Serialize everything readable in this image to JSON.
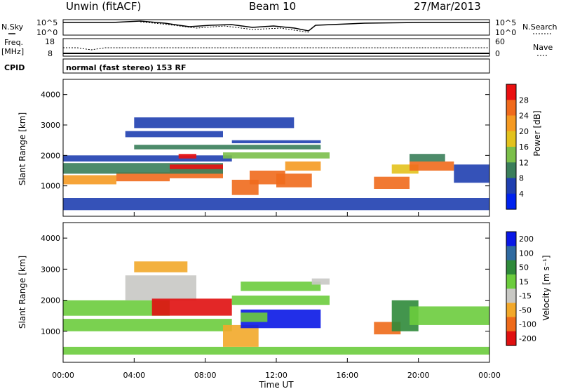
{
  "header": {
    "station": "Unwin (fitACF)",
    "beam": "Beam 10",
    "date": "27/Mar/2013"
  },
  "strip_labels": {
    "nsky": "N.Sky",
    "nsearch": "N.Search",
    "freq": "Freq.",
    "freq_unit": "[MHz]",
    "nave": "Nave",
    "cpid": "CPID",
    "noise_left_ticks": [
      "10^5",
      "10^0"
    ],
    "noise_right_ticks": [
      "10^5",
      "10^0"
    ],
    "freq_ticks": [
      "18",
      "8"
    ],
    "nave_ticks": [
      "60",
      "0"
    ]
  },
  "cpid_value": "normal (fast stereo) 153 RF",
  "x_axis": {
    "label": "Time UT",
    "ticks": [
      "00:00",
      "04:00",
      "08:00",
      "12:00",
      "16:00",
      "20:00",
      "00:00"
    ]
  },
  "colors": {
    "power_scale": [
      "#0022ee",
      "#1f3fb0",
      "#3a7e5a",
      "#7bbf4a",
      "#e3c21d",
      "#f59a22",
      "#f06a1c",
      "#ea1010"
    ],
    "velocity_scale": [
      "#0a18e6",
      "#2f6aa0",
      "#2f8a3a",
      "#6ccc3d",
      "#c8c8c4",
      "#f2a82a",
      "#ee6a1a",
      "#e01010"
    ]
  },
  "chart_data": [
    {
      "type": "heatmap",
      "panel": "power",
      "ylabel": "Slant Range [km]",
      "ylim": [
        0,
        4500
      ],
      "yticks": [
        "1000",
        "2000",
        "3000",
        "4000"
      ],
      "xlim_hours": [
        0,
        24
      ],
      "colorbar": {
        "label": "Power [dB]",
        "ticks": [
          "4",
          "8",
          "12",
          "16",
          "20",
          "24",
          "28"
        ],
        "range": [
          0,
          32
        ]
      },
      "regions": [
        {
          "t0": 0.0,
          "t1": 24.0,
          "r0": 200,
          "r1": 600,
          "value": 6
        },
        {
          "t0": 0.0,
          "t1": 3.0,
          "r0": 1050,
          "r1": 1350,
          "value": 23
        },
        {
          "t0": 3.0,
          "t1": 6.0,
          "r0": 1150,
          "r1": 1450,
          "value": 24
        },
        {
          "t0": 6.0,
          "t1": 9.0,
          "r0": 1250,
          "r1": 1600,
          "value": 27
        },
        {
          "t0": 0.0,
          "t1": 9.0,
          "r0": 1400,
          "r1": 1750,
          "value": 11
        },
        {
          "t0": 0.0,
          "t1": 9.5,
          "r0": 1800,
          "r1": 2000,
          "value": 7
        },
        {
          "t0": 6.0,
          "t1": 9.0,
          "r0": 1550,
          "r1": 1700,
          "value": 29
        },
        {
          "t0": 6.5,
          "t1": 7.5,
          "r0": 1900,
          "r1": 2050,
          "value": 28
        },
        {
          "t0": 4.0,
          "t1": 14.5,
          "r0": 2200,
          "r1": 2350,
          "value": 10
        },
        {
          "t0": 3.5,
          "t1": 9.0,
          "r0": 2600,
          "r1": 2800,
          "value": 6
        },
        {
          "t0": 4.0,
          "t1": 13.0,
          "r0": 2900,
          "r1": 3250,
          "value": 5
        },
        {
          "t0": 9.5,
          "t1": 11.0,
          "r0": 700,
          "r1": 1200,
          "value": 26
        },
        {
          "t0": 10.5,
          "t1": 12.5,
          "r0": 1050,
          "r1": 1500,
          "value": 26
        },
        {
          "t0": 12.0,
          "t1": 14.0,
          "r0": 950,
          "r1": 1400,
          "value": 27
        },
        {
          "t0": 12.5,
          "t1": 14.5,
          "r0": 1500,
          "r1": 1800,
          "value": 20
        },
        {
          "t0": 9.0,
          "t1": 15.0,
          "r0": 1900,
          "r1": 2100,
          "value": 15
        },
        {
          "t0": 9.5,
          "t1": 14.5,
          "r0": 2400,
          "r1": 2500,
          "value": 6
        },
        {
          "t0": 17.5,
          "t1": 19.5,
          "r0": 900,
          "r1": 1300,
          "value": 25
        },
        {
          "t0": 18.5,
          "t1": 20.0,
          "r0": 1400,
          "r1": 1700,
          "value": 16
        },
        {
          "t0": 19.5,
          "t1": 22.0,
          "r0": 1500,
          "r1": 1800,
          "value": 26
        },
        {
          "t0": 19.5,
          "t1": 21.5,
          "r0": 1800,
          "r1": 2050,
          "value": 11
        },
        {
          "t0": 22.0,
          "t1": 24.0,
          "r0": 1100,
          "r1": 1700,
          "value": 6
        }
      ]
    },
    {
      "type": "heatmap",
      "panel": "velocity",
      "ylabel": "Slant Range [km]",
      "ylim": [
        0,
        4500
      ],
      "yticks": [
        "1000",
        "2000",
        "3000",
        "4000"
      ],
      "xlim_hours": [
        0,
        24
      ],
      "colorbar": {
        "label": "Velocity [m s⁻¹]",
        "ticks": [
          "200",
          "100",
          "50",
          "15",
          "-15",
          "-50",
          "-100",
          "-200"
        ],
        "range": [
          -250,
          250
        ]
      },
      "regions": [
        {
          "t0": 0.0,
          "t1": 24.0,
          "r0": 250,
          "r1": 500,
          "value": 0
        },
        {
          "t0": 0.0,
          "t1": 9.5,
          "r0": 1000,
          "r1": 1400,
          "value": 0
        },
        {
          "t0": 0.0,
          "t1": 6.0,
          "r0": 1500,
          "r1": 2000,
          "value": 0
        },
        {
          "t0": 3.5,
          "t1": 7.5,
          "r0": 2000,
          "r1": 2800,
          "value": -50
        },
        {
          "t0": 4.0,
          "t1": 7.0,
          "r0": 2900,
          "r1": 3250,
          "value": -80
        },
        {
          "t0": 5.0,
          "t1": 9.5,
          "r0": 1500,
          "r1": 2050,
          "value": -190
        },
        {
          "t0": 9.0,
          "t1": 11.0,
          "r0": 500,
          "r1": 1200,
          "value": -90
        },
        {
          "t0": 10.0,
          "t1": 14.5,
          "r0": 1100,
          "r1": 1700,
          "value": 200
        },
        {
          "t0": 10.0,
          "t1": 11.5,
          "r0": 1300,
          "r1": 1600,
          "value": 60
        },
        {
          "t0": 9.5,
          "t1": 15.0,
          "r0": 1850,
          "r1": 2150,
          "value": 0
        },
        {
          "t0": 10.0,
          "t1": 14.5,
          "r0": 2300,
          "r1": 2600,
          "value": 0
        },
        {
          "t0": 14.0,
          "t1": 15.0,
          "r0": 2500,
          "r1": 2700,
          "value": -40
        },
        {
          "t0": 17.5,
          "t1": 19.0,
          "r0": 900,
          "r1": 1300,
          "value": -150
        },
        {
          "t0": 18.5,
          "t1": 20.0,
          "r0": 1000,
          "r1": 2000,
          "value": 80
        },
        {
          "t0": 19.5,
          "t1": 24.0,
          "r0": 1200,
          "r1": 1800,
          "value": 0
        }
      ]
    }
  ]
}
